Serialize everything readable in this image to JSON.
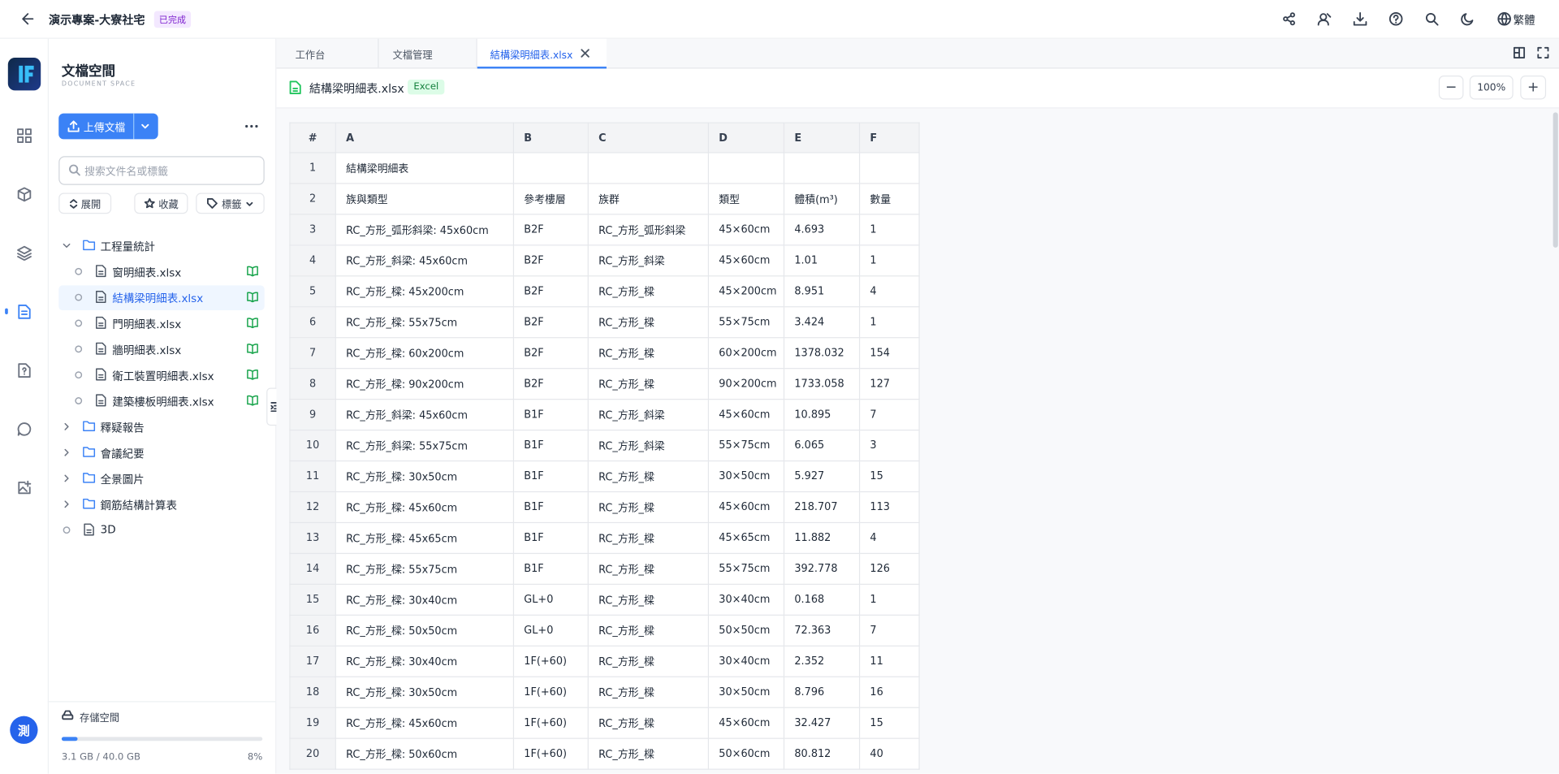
{
  "header": {
    "title": "演示專案-大寮社宅",
    "status": "已完成",
    "language": "繁體"
  },
  "sidebar": {
    "title": "文檔空間",
    "subtitle": "DOCUMENT SPACE",
    "upload": "上傳文檔",
    "search_placeholder": "搜索文件名或標籤",
    "filters": [
      "展開",
      "收藏",
      "標籤"
    ],
    "tree": [
      {
        "label": "工程量統計",
        "kind": "folder-open",
        "depth": 0
      },
      {
        "label": "窗明細表.xlsx",
        "kind": "file",
        "depth": 1
      },
      {
        "label": "結構梁明細表.xlsx",
        "kind": "file",
        "depth": 1,
        "selected": true
      },
      {
        "label": "門明細表.xlsx",
        "kind": "file",
        "depth": 1
      },
      {
        "label": "牆明細表.xlsx",
        "kind": "file",
        "depth": 1
      },
      {
        "label": "衛工裝置明細表.xlsx",
        "kind": "file",
        "depth": 1
      },
      {
        "label": "建築樓板明細表.xlsx",
        "kind": "file",
        "depth": 1
      },
      {
        "label": "釋疑報告",
        "kind": "folder",
        "depth": 0
      },
      {
        "label": "會議紀要",
        "kind": "folder",
        "depth": 0
      },
      {
        "label": "全景圖片",
        "kind": "folder",
        "depth": 0
      },
      {
        "label": "鋼筋結構計算表",
        "kind": "folder",
        "depth": 0
      },
      {
        "label": "3D",
        "kind": "file",
        "depth": 0
      }
    ],
    "storage": {
      "title": "存儲空間",
      "usage": "3.1 GB / 40.0 GB",
      "percent": {
        "value": 8,
        "label": "8%"
      }
    },
    "avatar": "測"
  },
  "tabs": [
    "工作台",
    "文檔管理",
    "結構梁明細表.xlsx"
  ],
  "file": {
    "name": "結構梁明細表.xlsx",
    "badge": "Excel",
    "zoom": "100%"
  },
  "table": {
    "columns": [
      "#",
      "A",
      "B",
      "C",
      "D",
      "E",
      "F"
    ],
    "rows": [
      [
        "1",
        "結構梁明細表"
      ],
      [
        "2",
        "族與類型",
        "參考樓層",
        "族群",
        "類型",
        "體積(m³)",
        "數量"
      ],
      [
        "3",
        "RC_方形_弧形斜梁: 45x60cm",
        "B2F",
        "RC_方形_弧形斜梁",
        "45×60cm",
        "4.693",
        "1"
      ],
      [
        "4",
        "RC_方形_斜梁: 45x60cm",
        "B2F",
        "RC_方形_斜梁",
        "45×60cm",
        "1.01",
        "1"
      ],
      [
        "5",
        "RC_方形_樑: 45x200cm",
        "B2F",
        "RC_方形_樑",
        "45×200cm",
        "8.951",
        "4"
      ],
      [
        "6",
        "RC_方形_樑: 55x75cm",
        "B2F",
        "RC_方形_樑",
        "55×75cm",
        "3.424",
        "1"
      ],
      [
        "7",
        "RC_方形_樑: 60x200cm",
        "B2F",
        "RC_方形_樑",
        "60×200cm",
        "1378.032",
        "154"
      ],
      [
        "8",
        "RC_方形_樑: 90x200cm",
        "B2F",
        "RC_方形_樑",
        "90×200cm",
        "1733.058",
        "127"
      ],
      [
        "9",
        "RC_方形_斜梁: 45x60cm",
        "B1F",
        "RC_方形_斜梁",
        "45×60cm",
        "10.895",
        "7"
      ],
      [
        "10",
        "RC_方形_斜梁: 55x75cm",
        "B1F",
        "RC_方形_斜梁",
        "55×75cm",
        "6.065",
        "3"
      ],
      [
        "11",
        "RC_方形_樑: 30x50cm",
        "B1F",
        "RC_方形_樑",
        "30×50cm",
        "5.927",
        "15"
      ],
      [
        "12",
        "RC_方形_樑: 45x60cm",
        "B1F",
        "RC_方形_樑",
        "45×60cm",
        "218.707",
        "113"
      ],
      [
        "13",
        "RC_方形_樑: 45x65cm",
        "B1F",
        "RC_方形_樑",
        "45×65cm",
        "11.882",
        "4"
      ],
      [
        "14",
        "RC_方形_樑: 55x75cm",
        "B1F",
        "RC_方形_樑",
        "55×75cm",
        "392.778",
        "126"
      ],
      [
        "15",
        "RC_方形_樑: 30x40cm",
        "GL+0",
        "RC_方形_樑",
        "30×40cm",
        "0.168",
        "1"
      ],
      [
        "16",
        "RC_方形_樑: 50x50cm",
        "GL+0",
        "RC_方形_樑",
        "50×50cm",
        "72.363",
        "7"
      ],
      [
        "17",
        "RC_方形_樑: 30x40cm",
        "1F(+60)",
        "RC_方形_樑",
        "30×40cm",
        "2.352",
        "11"
      ],
      [
        "18",
        "RC_方形_樑: 30x50cm",
        "1F(+60)",
        "RC_方形_樑",
        "30×50cm",
        "8.796",
        "16"
      ],
      [
        "19",
        "RC_方形_樑: 45x60cm",
        "1F(+60)",
        "RC_方形_樑",
        "45×60cm",
        "32.427",
        "15"
      ],
      [
        "20",
        "RC_方形_樑: 50x60cm",
        "1F(+60)",
        "RC_方形_樑",
        "50×60cm",
        "80.812",
        "40"
      ]
    ]
  }
}
